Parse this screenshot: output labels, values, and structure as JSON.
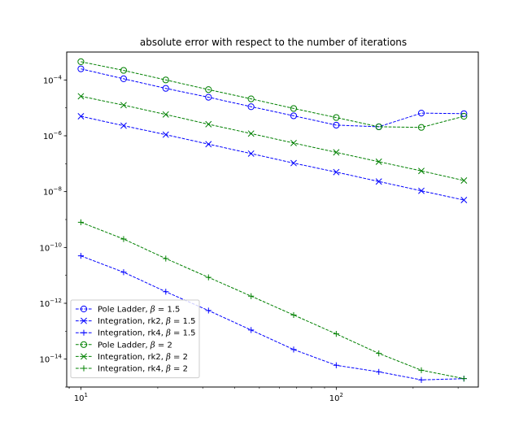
{
  "chart_data": {
    "type": "line",
    "title": "absolute error with respect to the number of iterations",
    "xlabel": "",
    "ylabel": "",
    "xscale": "log",
    "yscale": "log",
    "xlim": [
      8.8,
      360
    ],
    "ylim": [
      1e-15,
      0.001
    ],
    "x_ticks": [
      {
        "value": 10,
        "base": "10",
        "exp": "1"
      },
      {
        "value": 100,
        "base": "10",
        "exp": "2"
      }
    ],
    "y_ticks": [
      {
        "value": 1e-14,
        "base": "10",
        "exp": "−14"
      },
      {
        "value": 1e-12,
        "base": "10",
        "exp": "−12"
      },
      {
        "value": 1e-10,
        "base": "10",
        "exp": "−10"
      },
      {
        "value": 1e-08,
        "base": "10",
        "exp": "−8"
      },
      {
        "value": 1e-06,
        "base": "10",
        "exp": "−6"
      },
      {
        "value": 0.0001,
        "base": "10",
        "exp": "−4"
      }
    ],
    "grid": false,
    "legend_position": "lower-left",
    "x": [
      10,
      14.7,
      21.5,
      31.6,
      46.4,
      68.1,
      100,
      146.8,
      215.4,
      316.2
    ],
    "series": [
      {
        "name": "Pole Ladder, β = 1.5",
        "label_prefix": "Pole Ladder, ",
        "label_value": "1.5",
        "color": "#0000ff",
        "marker": "circle",
        "values": [
          0.00025,
          0.00011,
          5e-05,
          2.4e-05,
          1.1e-05,
          5.2e-06,
          2.4e-06,
          2.1e-06,
          6.5e-06,
          6.2e-06
        ]
      },
      {
        "name": "Integration, rk2, β = 1.5",
        "label_prefix": "Integration, rk2, ",
        "label_value": "1.5",
        "color": "#0000ff",
        "marker": "x",
        "values": [
          5e-06,
          2.3e-06,
          1.1e-06,
          5e-07,
          2.3e-07,
          1.05e-07,
          5e-08,
          2.3e-08,
          1.07e-08,
          5e-09
        ]
      },
      {
        "name": "Integration, rk4, β = 1.5",
        "label_prefix": "Integration, rk4, ",
        "label_value": "1.5",
        "color": "#0000ff",
        "marker": "plus",
        "values": [
          5e-11,
          1.3e-11,
          2.6e-12,
          5.5e-13,
          1.1e-13,
          2.2e-14,
          6e-15,
          3.5e-15,
          1.8e-15,
          2e-15
        ]
      },
      {
        "name": "Pole Ladder, β = 2",
        "label_prefix": "Pole Ladder, ",
        "label_value": "2",
        "color": "#008000",
        "marker": "circle",
        "values": [
          0.00045,
          0.00022,
          0.0001,
          4.5e-05,
          2.1e-05,
          9.5e-06,
          4.5e-06,
          2.1e-06,
          2e-06,
          5e-06
        ]
      },
      {
        "name": "Integration, rk2, β = 2",
        "label_prefix": "Integration, rk2, ",
        "label_value": "2",
        "color": "#008000",
        "marker": "x",
        "values": [
          2.6e-05,
          1.25e-05,
          5.8e-06,
          2.6e-06,
          1.2e-06,
          5.5e-07,
          2.55e-07,
          1.18e-07,
          5.5e-08,
          2.5e-08
        ]
      },
      {
        "name": "Integration, rk4, β = 2",
        "label_prefix": "Integration, rk4, ",
        "label_value": "2",
        "color": "#008000",
        "marker": "plus",
        "values": [
          8e-10,
          2e-10,
          4e-11,
          8.5e-12,
          1.8e-12,
          3.8e-13,
          8e-14,
          1.6e-14,
          4e-15,
          2e-15
        ]
      }
    ]
  }
}
